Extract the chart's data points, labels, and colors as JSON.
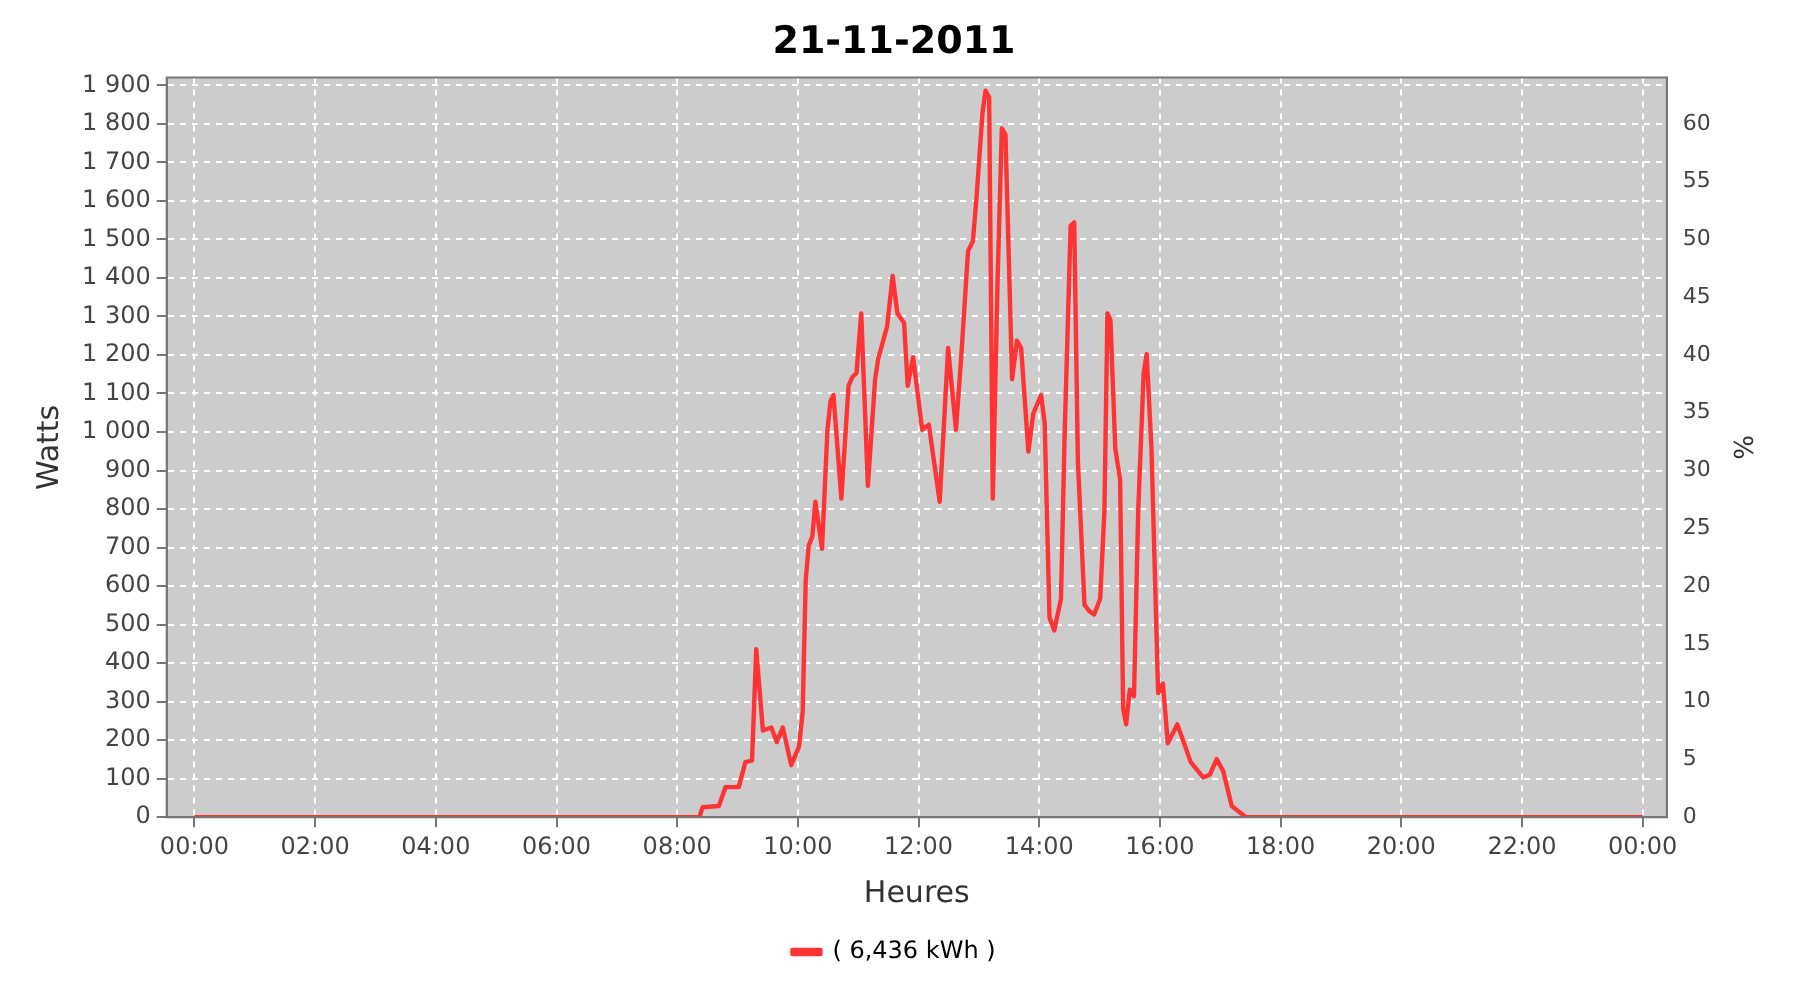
{
  "chart_data": {
    "type": "line",
    "title": "21-11-2011",
    "xlabel": "Heures",
    "ylabel": "Watts",
    "y2label": "%",
    "xlim": [
      -0.46,
      24.4
    ],
    "xticks": [
      {
        "value": 0,
        "label": "00:00"
      },
      {
        "value": 2,
        "label": "02:00"
      },
      {
        "value": 4,
        "label": "04:00"
      },
      {
        "value": 6,
        "label": "06:00"
      },
      {
        "value": 8,
        "label": "08:00"
      },
      {
        "value": 10,
        "label": "10:00"
      },
      {
        "value": 12,
        "label": "12:00"
      },
      {
        "value": 14,
        "label": "14:00"
      },
      {
        "value": 16,
        "label": "16:00"
      },
      {
        "value": 18,
        "label": "18:00"
      },
      {
        "value": 20,
        "label": "20:00"
      },
      {
        "value": 22,
        "label": "22:00"
      },
      {
        "value": 24,
        "label": "00:00"
      }
    ],
    "ylim": [
      0,
      1920
    ],
    "yticks": [
      0,
      100,
      200,
      300,
      400,
      500,
      600,
      700,
      800,
      900,
      {
        "value": 1000,
        "label": "1 000"
      },
      {
        "value": 1100,
        "label": "1 100"
      },
      {
        "value": 1200,
        "label": "1 200"
      },
      {
        "value": 1300,
        "label": "1 300"
      },
      {
        "value": 1400,
        "label": "1 400"
      },
      {
        "value": 1500,
        "label": "1 500"
      },
      {
        "value": 1600,
        "label": "1 600"
      },
      {
        "value": 1700,
        "label": "1 700"
      },
      {
        "value": 1800,
        "label": "1 800"
      },
      {
        "value": 1900,
        "label": "1 900"
      }
    ],
    "y2lim": [
      0,
      64
    ],
    "y2ticks": [
      0,
      5,
      10,
      15,
      20,
      25,
      30,
      35,
      40,
      45,
      50,
      55,
      60
    ],
    "grid": true,
    "legend": "bottom",
    "series": [
      {
        "name": "( 6,436 kWh )",
        "color": "#ff3333",
        "x": [
          0,
          8.37,
          8.42,
          8.69,
          8.8,
          9.02,
          9.13,
          9.24,
          9.31,
          9.42,
          9.56,
          9.65,
          9.75,
          9.89,
          10.02,
          10.08,
          10.13,
          10.18,
          10.24,
          10.29,
          10.4,
          10.49,
          10.54,
          10.59,
          10.72,
          10.84,
          10.9,
          10.97,
          11.05,
          11.16,
          11.28,
          11.33,
          11.48,
          11.57,
          11.65,
          11.76,
          11.82,
          11.91,
          12.06,
          12.17,
          12.35,
          12.49,
          12.62,
          12.71,
          12.82,
          12.9,
          12.96,
          13.06,
          13.11,
          13.17,
          13.23,
          13.31,
          13.38,
          13.44,
          13.55,
          13.63,
          13.7,
          13.82,
          13.9,
          14.03,
          14.09,
          14.17,
          14.25,
          14.36,
          14.42,
          14.52,
          14.58,
          14.64,
          14.75,
          14.83,
          14.91,
          15.01,
          15.08,
          15.13,
          15.18,
          15.26,
          15.34,
          15.39,
          15.44,
          15.5,
          15.57,
          15.64,
          15.73,
          15.78,
          15.86,
          15.97,
          16.05,
          16.13,
          16.29,
          16.51,
          16.72,
          16.83,
          16.94,
          17.05,
          17.19,
          17.32,
          17.43,
          24
        ],
        "values": [
          0,
          0,
          26,
          29,
          78,
          78,
          143,
          147,
          436,
          225,
          233,
          195,
          233,
          135,
          184,
          274,
          616,
          705,
          729,
          819,
          697,
          1006,
          1080,
          1096,
          827,
          1120,
          1142,
          1153,
          1308,
          860,
          1137,
          1189,
          1275,
          1405,
          1308,
          1283,
          1120,
          1194,
          1006,
          1019,
          819,
          1218,
          1006,
          1202,
          1470,
          1495,
          1608,
          1829,
          1886,
          1869,
          827,
          1397,
          1788,
          1772,
          1137,
          1237,
          1218,
          949,
          1047,
          1096,
          1023,
          518,
          485,
          567,
          990,
          1535,
          1544,
          925,
          551,
          535,
          526,
          567,
          795,
          1308,
          1291,
          957,
          876,
          282,
          241,
          331,
          314,
          795,
          1153,
          1202,
          957,
          322,
          347,
          192,
          241,
          143,
          103,
          111,
          151,
          119,
          29,
          13,
          0,
          0
        ]
      }
    ]
  }
}
